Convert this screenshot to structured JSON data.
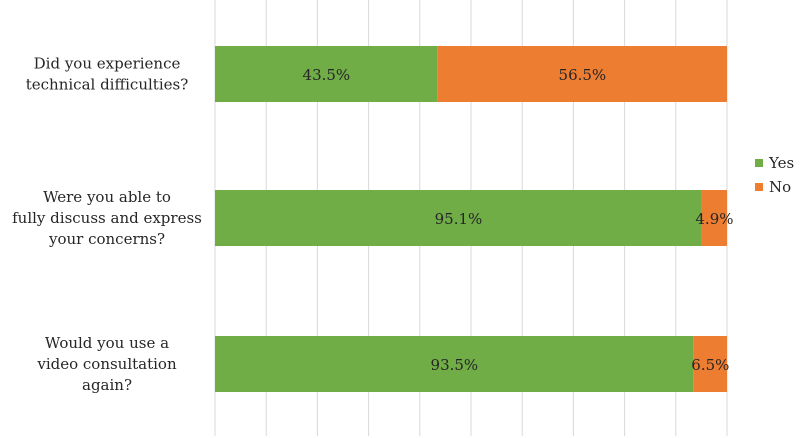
{
  "chart_data": {
    "type": "bar",
    "orientation": "horizontal",
    "stacked": true,
    "percent": true,
    "categories": [
      [
        "Did you experience",
        "technical difficulties?"
      ],
      [
        "Were you able to",
        "fully discuss and express",
        "your concerns?"
      ],
      [
        "Would you use a",
        "video consultation",
        "again?"
      ]
    ],
    "series": [
      {
        "name": "Yes",
        "color": "#70ad47",
        "values": [
          43.5,
          95.1,
          93.5
        ],
        "labels": [
          "43.5%",
          "95.1%",
          "93.5%"
        ]
      },
      {
        "name": "No",
        "color": "#ed7d31",
        "values": [
          56.5,
          4.9,
          6.5
        ],
        "labels": [
          "56.5%",
          "4.9%",
          "6.5%"
        ]
      }
    ],
    "xlim": [
      0,
      100
    ],
    "grid": "vertical",
    "legend": "right"
  }
}
